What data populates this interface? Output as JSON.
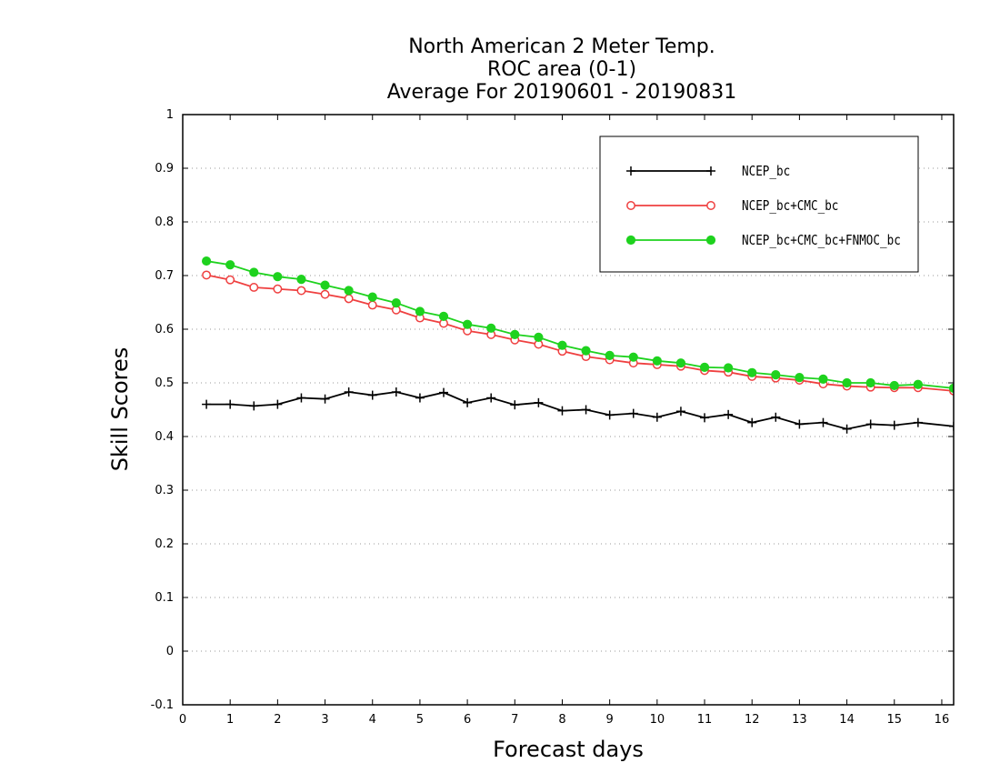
{
  "chart_data": {
    "type": "line",
    "title": [
      "North American 2 Meter Temp.",
      "ROC area (0-1)",
      "Average For 20190601 - 20190831"
    ],
    "xlabel": "Forecast days",
    "ylabel": "Skill Scores",
    "xlim": [
      0,
      16.25
    ],
    "ylim": [
      -0.1,
      1
    ],
    "x_ticks": [
      0,
      1,
      2,
      3,
      4,
      5,
      6,
      7,
      8,
      9,
      10,
      11,
      12,
      13,
      14,
      15,
      16
    ],
    "y_ticks": [
      -0.1,
      0,
      0.1,
      0.2,
      0.3,
      0.4,
      0.5,
      0.6,
      0.7,
      0.8,
      0.9,
      1
    ],
    "y_tick_labels": [
      "-0.1",
      "0",
      "0.1",
      "0.2",
      "0.3",
      "0.4",
      "0.5",
      "0.6",
      "0.7",
      "0.8",
      "0.9",
      "1"
    ],
    "grid": "horizontal dotted",
    "legend_position": "top-right",
    "x": [
      0.5,
      1,
      1.5,
      2,
      2.5,
      3,
      3.5,
      4,
      4.5,
      5,
      5.5,
      6,
      6.5,
      7,
      7.5,
      8,
      8.5,
      9,
      9.5,
      10,
      10.5,
      11,
      11.5,
      12,
      12.5,
      13,
      13.5,
      14,
      14.5,
      15,
      15.5,
      16.25
    ],
    "series": [
      {
        "name": "NCEP_bc",
        "color": "#000000",
        "marker": "plus",
        "values": [
          0.46,
          0.46,
          0.457,
          0.46,
          0.472,
          0.47,
          0.483,
          0.477,
          0.483,
          0.472,
          0.482,
          0.463,
          0.472,
          0.459,
          0.463,
          0.448,
          0.45,
          0.44,
          0.443,
          0.436,
          0.447,
          0.435,
          0.441,
          0.426,
          0.436,
          0.423,
          0.426,
          0.414,
          0.423,
          0.421,
          0.426,
          0.419
        ]
      },
      {
        "name": "NCEP_bc+CMC_bc",
        "color": "#ef4040",
        "marker": "open-circle",
        "values": [
          0.701,
          0.692,
          0.678,
          0.675,
          0.672,
          0.665,
          0.657,
          0.645,
          0.636,
          0.621,
          0.611,
          0.597,
          0.59,
          0.58,
          0.572,
          0.559,
          0.549,
          0.543,
          0.537,
          0.534,
          0.531,
          0.523,
          0.52,
          0.512,
          0.509,
          0.505,
          0.498,
          0.494,
          0.492,
          0.491,
          0.491,
          0.485
        ]
      },
      {
        "name": "NCEP_bc+CMC_bc+FNMOC_bc",
        "color": "#1ed21e",
        "marker": "filled-circle",
        "values": [
          0.727,
          0.72,
          0.706,
          0.698,
          0.693,
          0.682,
          0.672,
          0.66,
          0.649,
          0.633,
          0.624,
          0.609,
          0.602,
          0.59,
          0.585,
          0.57,
          0.56,
          0.551,
          0.548,
          0.541,
          0.537,
          0.529,
          0.528,
          0.519,
          0.515,
          0.51,
          0.507,
          0.5,
          0.5,
          0.495,
          0.497,
          0.49
        ]
      }
    ]
  }
}
